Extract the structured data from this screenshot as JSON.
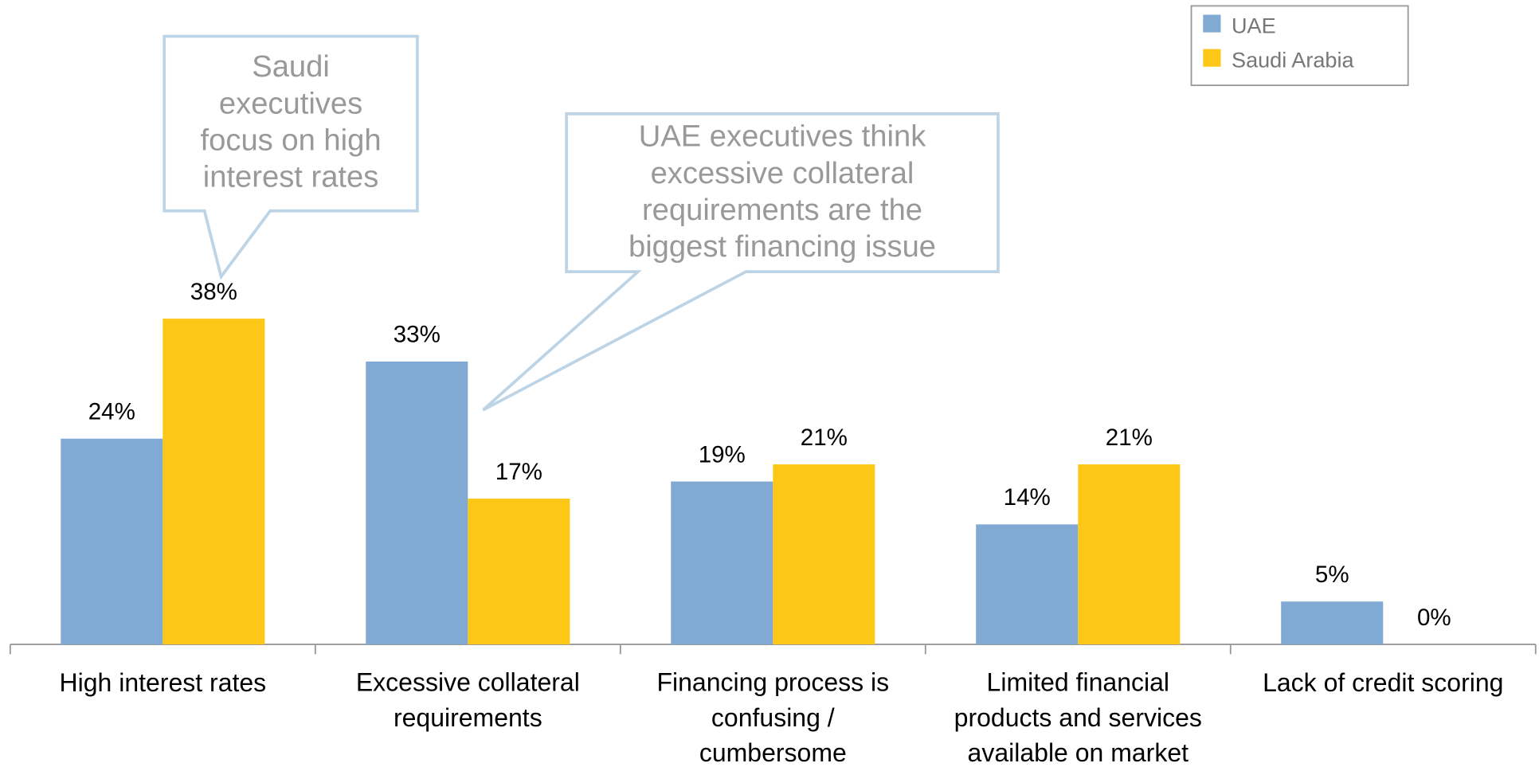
{
  "chart_data": {
    "type": "bar",
    "categories": [
      "High interest rates",
      "Excessive collateral\nrequirements",
      "Financing process is\nconfusing /\ncumbersome",
      "Limited financial\nproducts and services\navailable on market",
      "Lack of credit scoring"
    ],
    "series": [
      {
        "name": "UAE",
        "color": "#80aad3",
        "values": [
          24,
          33,
          19,
          14,
          5
        ],
        "value_labels": [
          "24%",
          "33%",
          "19%",
          "14%",
          "5%"
        ]
      },
      {
        "name": "Saudi Arabia",
        "color": "#fcc717",
        "values": [
          38,
          17,
          21,
          21,
          0
        ],
        "value_labels": [
          "38%",
          "17%",
          "21%",
          "21%",
          "0%"
        ]
      }
    ],
    "legend": "top-right",
    "annotations": [
      "Saudi\nexecutives\nfocus on high\ninterest rates",
      "UAE executives think\nexcessive collateral\nrequirements are the\nbiggest financing issue"
    ]
  }
}
